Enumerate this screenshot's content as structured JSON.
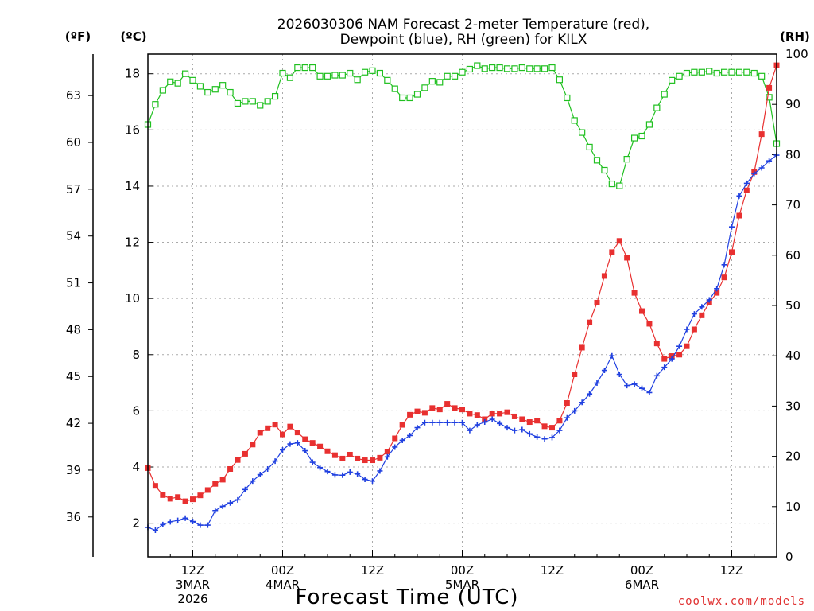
{
  "title_line1": "2026030306 NAM Forecast 2-meter Temperature (red),",
  "title_line2": "Dewpoint (blue), RH (green) for KILX",
  "unit_f": "(ºF)",
  "unit_c": "(ºC)",
  "unit_rh": "(RH)",
  "xlabel": "Forecast Time (UTC)",
  "credit": "coolwx.com/models",
  "colors": {
    "temperature": "#e83030",
    "dewpoint": "#2040e0",
    "rh": "#20c020",
    "grid": "#aaaaaa"
  },
  "chart_data": {
    "type": "line",
    "title": "2026030306 NAM Forecast 2-meter Temperature (red), Dewpoint (blue), RH (green) for KILX",
    "xlabel": "Forecast Time (UTC)",
    "x_unit": "forecast hour from 2026-03-03 06Z",
    "xlim": [
      0,
      84
    ],
    "xticks": [
      {
        "x": 6,
        "lines": [
          "12Z",
          "3MAR",
          "2026"
        ]
      },
      {
        "x": 18,
        "lines": [
          "00Z",
          "4MAR"
        ]
      },
      {
        "x": 30,
        "lines": [
          "12Z"
        ]
      },
      {
        "x": 42,
        "lines": [
          "00Z",
          "5MAR"
        ]
      },
      {
        "x": 54,
        "lines": [
          "12Z"
        ]
      },
      {
        "x": 66,
        "lines": [
          "00Z",
          "6MAR"
        ]
      },
      {
        "x": 78,
        "lines": [
          "12Z"
        ]
      }
    ],
    "y_left_celsius": {
      "label": "(ºC)",
      "ylim": [
        0.8,
        18.7
      ],
      "ticks": [
        2,
        4,
        6,
        8,
        10,
        12,
        14,
        16,
        18
      ]
    },
    "y_left_fahrenheit": {
      "label": "(ºF)",
      "ticks": [
        36,
        39,
        42,
        45,
        48,
        51,
        54,
        57,
        60,
        63
      ]
    },
    "y_right_rh": {
      "label": "(RH)",
      "ylim": [
        0,
        100
      ],
      "ticks": [
        0,
        10,
        20,
        30,
        40,
        50,
        60,
        70,
        80,
        90,
        100
      ]
    },
    "grid": true,
    "series": [
      {
        "key": "temperature",
        "marker": "filled-square",
        "axis": "celsius",
        "x": [
          0,
          1,
          2,
          3,
          4,
          5,
          6,
          7,
          8,
          9,
          10,
          11,
          12,
          13,
          14,
          15,
          16,
          17,
          18,
          19,
          20,
          21,
          22,
          23,
          24,
          25,
          26,
          27,
          28,
          29,
          30,
          31,
          32,
          33,
          34,
          35,
          36,
          37,
          38,
          39,
          40,
          41,
          42,
          43,
          44,
          45,
          46,
          47,
          48,
          49,
          50,
          51,
          52,
          53,
          54,
          55,
          56,
          57,
          58,
          59,
          60,
          61,
          62,
          63,
          64,
          65,
          66,
          67,
          68,
          69,
          70,
          71,
          72,
          73,
          74,
          75,
          76,
          77,
          78,
          79,
          80,
          81,
          82,
          83,
          84
        ],
        "values": [
          3.96,
          3.33,
          3.0,
          2.87,
          2.93,
          2.78,
          2.85,
          2.99,
          3.18,
          3.4,
          3.55,
          3.93,
          4.25,
          4.47,
          4.8,
          5.22,
          5.38,
          5.51,
          5.16,
          5.44,
          5.23,
          4.99,
          4.86,
          4.73,
          4.56,
          4.42,
          4.3,
          4.44,
          4.3,
          4.24,
          4.24,
          4.33,
          4.55,
          5.02,
          5.5,
          5.86,
          5.98,
          5.93,
          6.1,
          6.05,
          6.25,
          6.1,
          6.05,
          5.9,
          5.85,
          5.7,
          5.9,
          5.9,
          5.95,
          5.8,
          5.7,
          5.6,
          5.65,
          5.45,
          5.4,
          5.65,
          6.28,
          7.3,
          8.25,
          9.15,
          9.85,
          10.8,
          11.65,
          12.05,
          11.45,
          10.2,
          9.55,
          9.1,
          8.4,
          7.85,
          7.95,
          8.0,
          8.3,
          8.9,
          9.4,
          9.85,
          10.2,
          10.75,
          11.65,
          12.95,
          13.85,
          14.5,
          15.85,
          17.5,
          18.3
        ]
      },
      {
        "key": "dewpoint",
        "marker": "plus",
        "axis": "celsius",
        "x": [
          0,
          1,
          2,
          3,
          4,
          5,
          6,
          7,
          8,
          9,
          10,
          11,
          12,
          13,
          14,
          15,
          16,
          17,
          18,
          19,
          20,
          21,
          22,
          23,
          24,
          25,
          26,
          27,
          28,
          29,
          30,
          31,
          32,
          33,
          34,
          35,
          36,
          37,
          38,
          39,
          40,
          41,
          42,
          43,
          44,
          45,
          46,
          47,
          48,
          49,
          50,
          51,
          52,
          53,
          54,
          55,
          56,
          57,
          58,
          59,
          60,
          61,
          62,
          63,
          64,
          65,
          66,
          67,
          68,
          69,
          70,
          71,
          72,
          73,
          74,
          75,
          76,
          77,
          78,
          79,
          80,
          81,
          82,
          83,
          84
        ],
        "values": [
          1.85,
          1.75,
          1.95,
          2.05,
          2.1,
          2.18,
          2.06,
          1.93,
          1.93,
          2.45,
          2.6,
          2.72,
          2.83,
          3.2,
          3.5,
          3.73,
          3.93,
          4.21,
          4.61,
          4.82,
          4.86,
          4.58,
          4.17,
          3.98,
          3.84,
          3.72,
          3.71,
          3.82,
          3.75,
          3.56,
          3.5,
          3.86,
          4.36,
          4.71,
          4.95,
          5.12,
          5.4,
          5.58,
          5.58,
          5.58,
          5.58,
          5.58,
          5.58,
          5.3,
          5.5,
          5.6,
          5.7,
          5.55,
          5.4,
          5.3,
          5.33,
          5.18,
          5.07,
          5.0,
          5.05,
          5.3,
          5.75,
          6.0,
          6.3,
          6.6,
          6.99,
          7.44,
          7.96,
          7.3,
          6.9,
          6.95,
          6.8,
          6.65,
          7.25,
          7.55,
          7.85,
          8.3,
          8.9,
          9.45,
          9.7,
          9.95,
          10.35,
          11.2,
          12.55,
          13.65,
          14.1,
          14.45,
          14.65,
          14.9,
          15.1
        ]
      },
      {
        "key": "rh",
        "marker": "open-square",
        "axis": "rh",
        "x": [
          0,
          1,
          2,
          3,
          4,
          5,
          6,
          7,
          8,
          9,
          10,
          11,
          12,
          13,
          14,
          15,
          16,
          17,
          18,
          19,
          20,
          21,
          22,
          23,
          24,
          25,
          26,
          27,
          28,
          29,
          30,
          31,
          32,
          33,
          34,
          35,
          36,
          37,
          38,
          39,
          40,
          41,
          42,
          43,
          44,
          45,
          46,
          47,
          48,
          49,
          50,
          51,
          52,
          53,
          54,
          55,
          56,
          57,
          58,
          59,
          60,
          61,
          62,
          63,
          64,
          65,
          66,
          67,
          68,
          69,
          70,
          71,
          72,
          73,
          74,
          75,
          76,
          77,
          78,
          79,
          80,
          81,
          82,
          83,
          84
        ],
        "values": [
          86,
          90,
          92.8,
          94.5,
          94.2,
          96.1,
          94.8,
          93.6,
          92.4,
          93,
          93.8,
          92.4,
          90.2,
          90.6,
          90.6,
          89.8,
          90.6,
          91.6,
          96.2,
          95.3,
          97.3,
          97.3,
          97.3,
          95.6,
          95.6,
          95.8,
          95.8,
          96.2,
          94.9,
          96.4,
          96.7,
          96.2,
          94.8,
          93.1,
          91.3,
          91.3,
          92,
          93.3,
          94.6,
          94.4,
          95.6,
          95.6,
          96.4,
          97,
          97.7,
          97.1,
          97.3,
          97.3,
          97.1,
          97.1,
          97.3,
          97.1,
          97.1,
          97.1,
          97.3,
          94.9,
          91.3,
          86.8,
          84.4,
          81.5,
          78.9,
          76.9,
          74.2,
          73.8,
          79.1,
          83.3,
          83.7,
          86,
          89.3,
          92,
          94.8,
          95.6,
          96.2,
          96.4,
          96.4,
          96.6,
          96.2,
          96.4,
          96.4,
          96.4,
          96.4,
          96.2,
          95.6,
          91.4,
          82.2
        ]
      }
    ]
  }
}
